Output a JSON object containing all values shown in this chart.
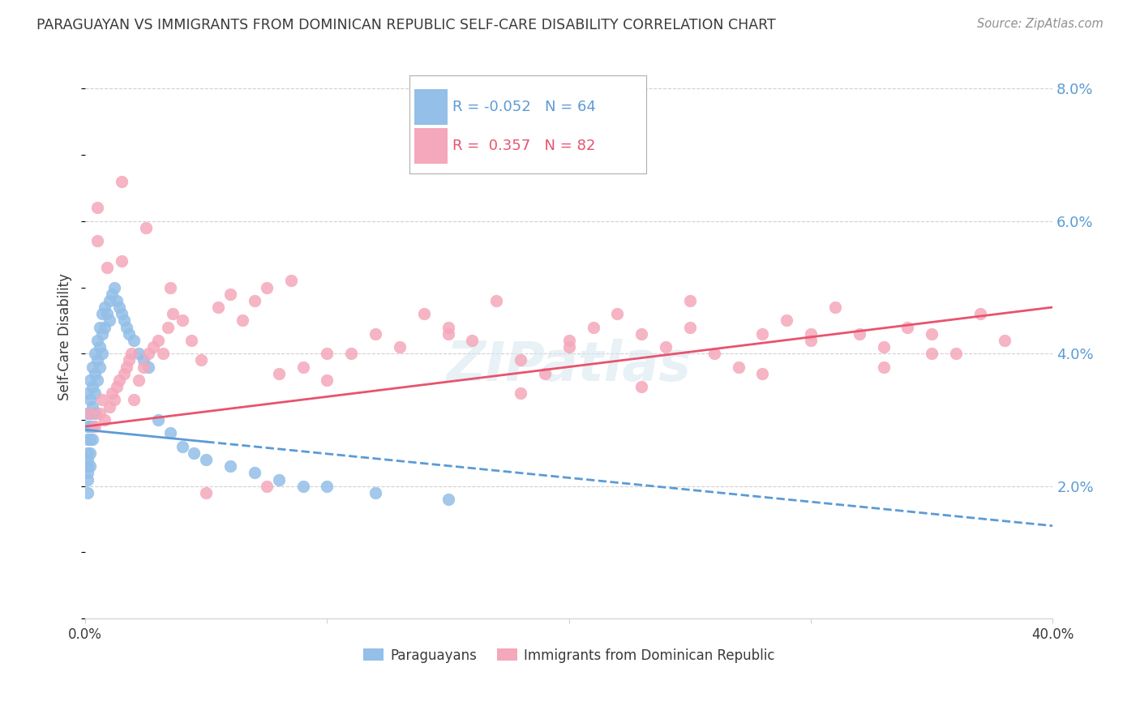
{
  "title": "PARAGUAYAN VS IMMIGRANTS FROM DOMINICAN REPUBLIC SELF-CARE DISABILITY CORRELATION CHART",
  "source": "Source: ZipAtlas.com",
  "ylabel": "Self-Care Disability",
  "xlim": [
    0.0,
    0.4
  ],
  "ylim": [
    0.0,
    0.085
  ],
  "yticks_right": [
    0.02,
    0.04,
    0.06,
    0.08
  ],
  "ytick_right_labels": [
    "2.0%",
    "4.0%",
    "6.0%",
    "8.0%"
  ],
  "legend_blue_r": "-0.052",
  "legend_blue_n": "64",
  "legend_pink_r": "0.357",
  "legend_pink_n": "82",
  "blue_scatter_color": "#93bfe8",
  "pink_scatter_color": "#f5a8bb",
  "blue_line_color": "#5b9bd5",
  "pink_line_color": "#e8536e",
  "grid_color": "#d0d0d0",
  "background_color": "#ffffff",
  "title_color": "#3a3a3a",
  "source_color": "#909090",
  "axis_label_color": "#3a3a3a",
  "right_tick_color": "#5b9bd5",
  "blue_line_y0": 0.0285,
  "blue_line_y1": 0.014,
  "pink_line_y0": 0.029,
  "pink_line_y1": 0.047,
  "blue_points": {
    "x": [
      0.001,
      0.001,
      0.001,
      0.001,
      0.001,
      0.001,
      0.001,
      0.001,
      0.001,
      0.001,
      0.002,
      0.002,
      0.002,
      0.002,
      0.002,
      0.002,
      0.002,
      0.003,
      0.003,
      0.003,
      0.003,
      0.003,
      0.004,
      0.004,
      0.004,
      0.004,
      0.005,
      0.005,
      0.005,
      0.006,
      0.006,
      0.006,
      0.007,
      0.007,
      0.007,
      0.008,
      0.008,
      0.009,
      0.01,
      0.01,
      0.011,
      0.012,
      0.013,
      0.014,
      0.015,
      0.016,
      0.017,
      0.018,
      0.02,
      0.022,
      0.024,
      0.026,
      0.03,
      0.035,
      0.04,
      0.045,
      0.05,
      0.06,
      0.07,
      0.08,
      0.09,
      0.1,
      0.12,
      0.15
    ],
    "y": [
      0.034,
      0.031,
      0.029,
      0.027,
      0.025,
      0.024,
      0.023,
      0.022,
      0.021,
      0.019,
      0.036,
      0.033,
      0.031,
      0.029,
      0.027,
      0.025,
      0.023,
      0.038,
      0.035,
      0.032,
      0.029,
      0.027,
      0.04,
      0.037,
      0.034,
      0.031,
      0.042,
      0.039,
      0.036,
      0.044,
      0.041,
      0.038,
      0.046,
      0.043,
      0.04,
      0.047,
      0.044,
      0.046,
      0.048,
      0.045,
      0.049,
      0.05,
      0.048,
      0.047,
      0.046,
      0.045,
      0.044,
      0.043,
      0.042,
      0.04,
      0.039,
      0.038,
      0.03,
      0.028,
      0.026,
      0.025,
      0.024,
      0.023,
      0.022,
      0.021,
      0.02,
      0.02,
      0.019,
      0.018
    ]
  },
  "pink_points": {
    "x": [
      0.002,
      0.004,
      0.005,
      0.006,
      0.007,
      0.008,
      0.009,
      0.01,
      0.011,
      0.012,
      0.013,
      0.014,
      0.015,
      0.016,
      0.017,
      0.018,
      0.019,
      0.02,
      0.022,
      0.024,
      0.026,
      0.028,
      0.03,
      0.032,
      0.034,
      0.036,
      0.04,
      0.044,
      0.048,
      0.055,
      0.06,
      0.065,
      0.07,
      0.075,
      0.08,
      0.085,
      0.09,
      0.1,
      0.11,
      0.12,
      0.13,
      0.14,
      0.15,
      0.16,
      0.17,
      0.18,
      0.19,
      0.2,
      0.21,
      0.22,
      0.23,
      0.24,
      0.25,
      0.26,
      0.27,
      0.28,
      0.29,
      0.3,
      0.31,
      0.32,
      0.33,
      0.34,
      0.35,
      0.36,
      0.37,
      0.38,
      0.005,
      0.015,
      0.025,
      0.035,
      0.05,
      0.075,
      0.1,
      0.15,
      0.2,
      0.25,
      0.3,
      0.35,
      0.28,
      0.33,
      0.18,
      0.23
    ],
    "y": [
      0.031,
      0.029,
      0.057,
      0.031,
      0.033,
      0.03,
      0.053,
      0.032,
      0.034,
      0.033,
      0.035,
      0.036,
      0.054,
      0.037,
      0.038,
      0.039,
      0.04,
      0.033,
      0.036,
      0.038,
      0.04,
      0.041,
      0.042,
      0.04,
      0.044,
      0.046,
      0.045,
      0.042,
      0.039,
      0.047,
      0.049,
      0.045,
      0.048,
      0.05,
      0.037,
      0.051,
      0.038,
      0.036,
      0.04,
      0.043,
      0.041,
      0.046,
      0.044,
      0.042,
      0.048,
      0.039,
      0.037,
      0.042,
      0.044,
      0.046,
      0.043,
      0.041,
      0.048,
      0.04,
      0.038,
      0.037,
      0.045,
      0.042,
      0.047,
      0.043,
      0.041,
      0.044,
      0.043,
      0.04,
      0.046,
      0.042,
      0.062,
      0.066,
      0.059,
      0.05,
      0.019,
      0.02,
      0.04,
      0.043,
      0.041,
      0.044,
      0.043,
      0.04,
      0.043,
      0.038,
      0.034,
      0.035
    ]
  }
}
